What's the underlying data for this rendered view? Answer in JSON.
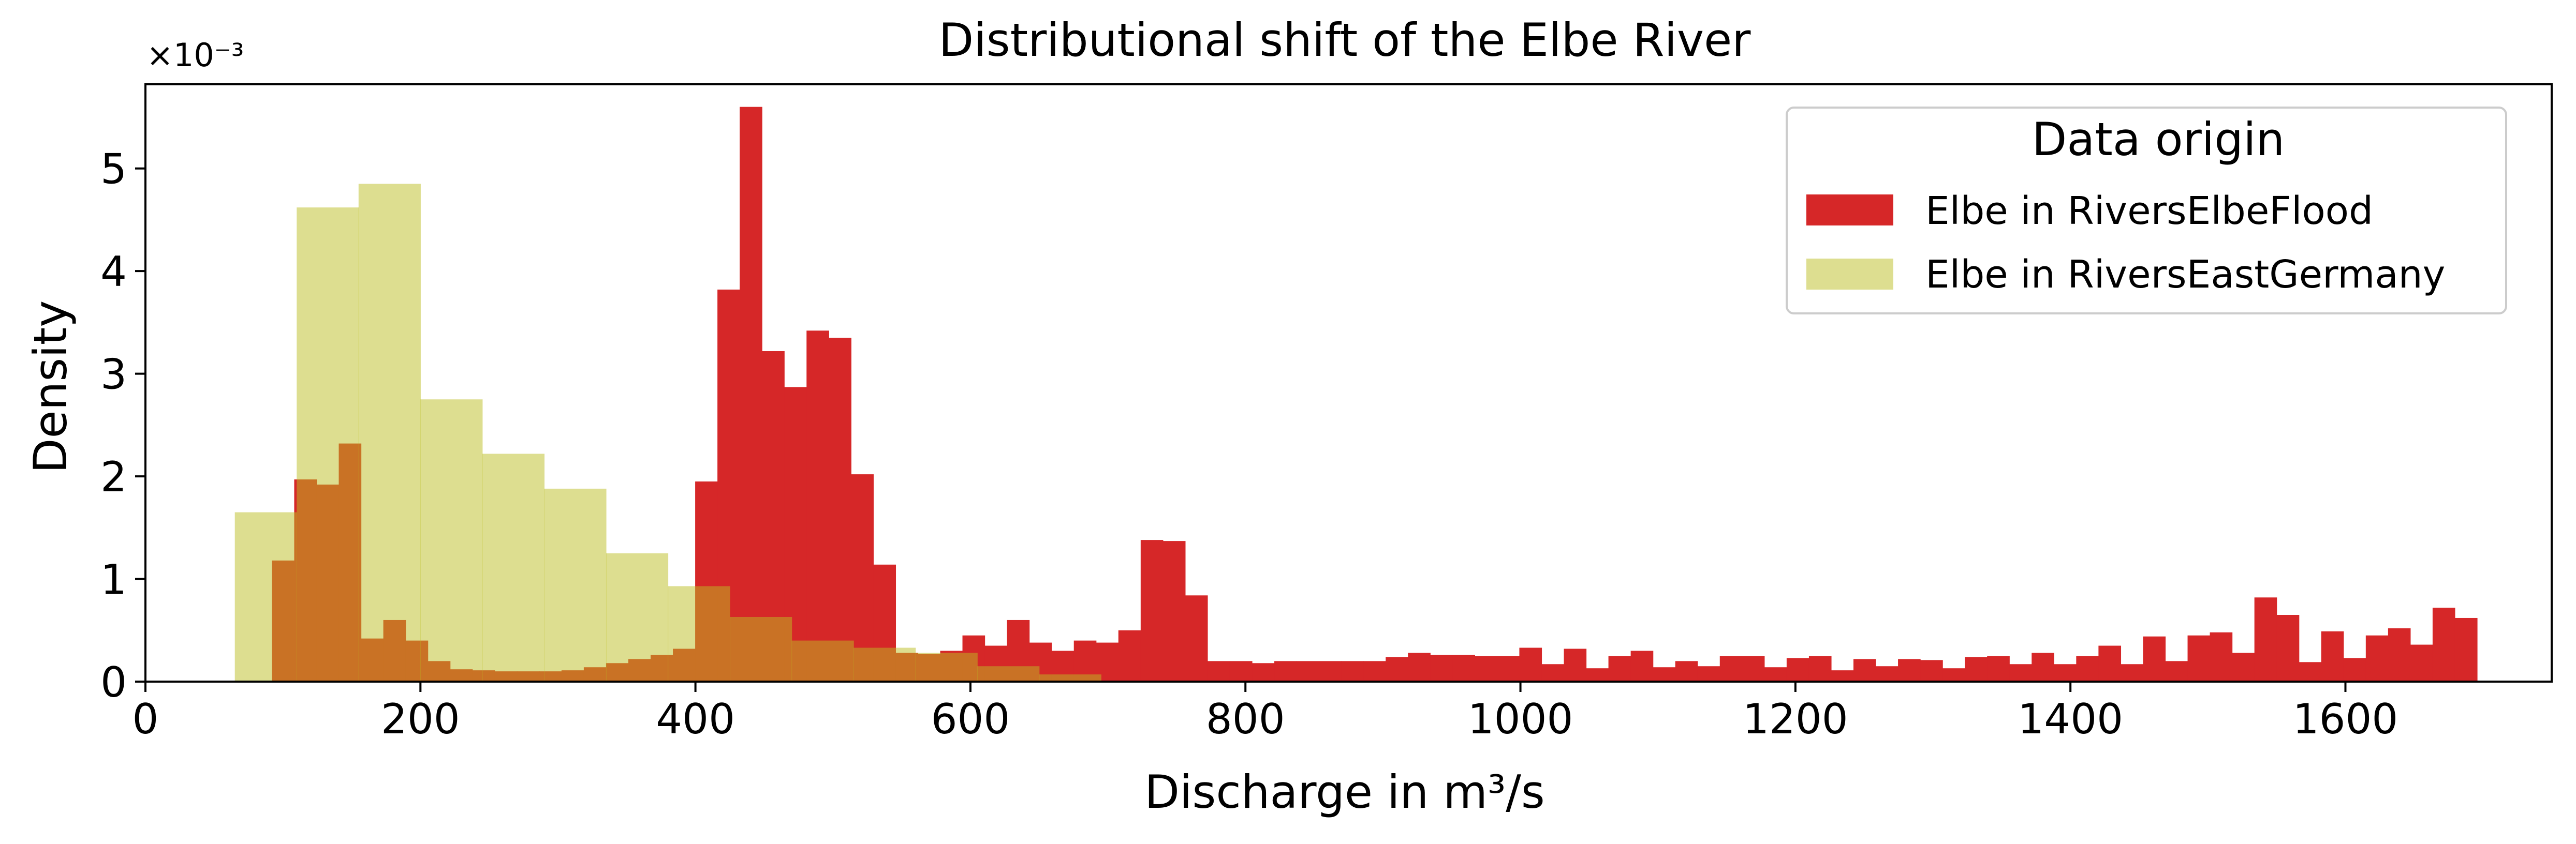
{
  "chart_data": {
    "type": "histogram",
    "title": "Distributional shift of the Elbe River",
    "xlabel": "Discharge in m³/s",
    "ylabel": "Density",
    "offset_text": "×10⁻³",
    "xlim": [
      0,
      1750
    ],
    "ylim": [
      0,
      0.00582
    ],
    "xticks": [
      0,
      200,
      400,
      600,
      800,
      1000,
      1200,
      1400,
      1600
    ],
    "yticks": [
      0,
      0.001,
      0.002,
      0.003,
      0.004,
      0.005
    ],
    "ytick_labels": [
      "0",
      "1",
      "2",
      "3",
      "4",
      "5"
    ],
    "grid": false,
    "legend": {
      "title": "Data origin",
      "placement": "upper right",
      "entries": [
        "Elbe in RiversElbeFlood",
        "Elbe in RiversEastGermany"
      ]
    },
    "series": [
      {
        "name": "Elbe in RiversElbeFlood",
        "color": "#d62728",
        "alpha": 1.0,
        "bin_start": 92,
        "bin_width": 16.2,
        "values": [
          0.00118,
          0.00197,
          0.00192,
          0.00232,
          0.00042,
          0.0006,
          0.0004,
          0.0002,
          0.00012,
          0.00011,
          0.0001,
          0.0001,
          0.0001,
          0.00011,
          0.00014,
          0.00018,
          0.00022,
          0.00026,
          0.00032,
          0.00195,
          0.00382,
          0.0056,
          0.00322,
          0.00287,
          0.00342,
          0.00335,
          0.00202,
          0.00114,
          0.00028,
          0.00027,
          0.0003,
          0.00045,
          0.00035,
          0.0006,
          0.00038,
          0.0003,
          0.0004,
          0.00038,
          0.0005,
          0.00138,
          0.00137,
          0.00084,
          0.0002,
          0.0002,
          0.00018,
          0.0002,
          0.0002,
          0.0002,
          0.0002,
          0.0002,
          0.00024,
          0.00028,
          0.00026,
          0.00026,
          0.00025,
          0.00025,
          0.00033,
          0.00017,
          0.00032,
          0.00013,
          0.00025,
          0.0003,
          0.00014,
          0.0002,
          0.00015,
          0.00025,
          0.00025,
          0.00014,
          0.00023,
          0.00025,
          0.00011,
          0.00022,
          0.00015,
          0.00022,
          0.00021,
          0.00013,
          0.00024,
          0.00025,
          0.00017,
          0.00028,
          0.00017,
          0.00025,
          0.00035,
          0.00017,
          0.00044,
          0.0002,
          0.00045,
          0.00048,
          0.00028,
          0.00082,
          0.00065,
          0.00019,
          0.00049,
          0.00023,
          0.00045,
          0.00052,
          0.00036,
          0.00072,
          0.00062
        ]
      },
      {
        "name": "Elbe in RiversEastGermany",
        "color": "#bcbd22",
        "alpha": 0.5,
        "bin_start": 65,
        "bin_width": 45,
        "values": [
          0.00165,
          0.00462,
          0.00485,
          0.00275,
          0.00222,
          0.00188,
          0.00125,
          0.00093,
          0.00063,
          0.0004,
          0.00033,
          0.00028,
          0.00015,
          7e-05
        ]
      }
    ]
  }
}
